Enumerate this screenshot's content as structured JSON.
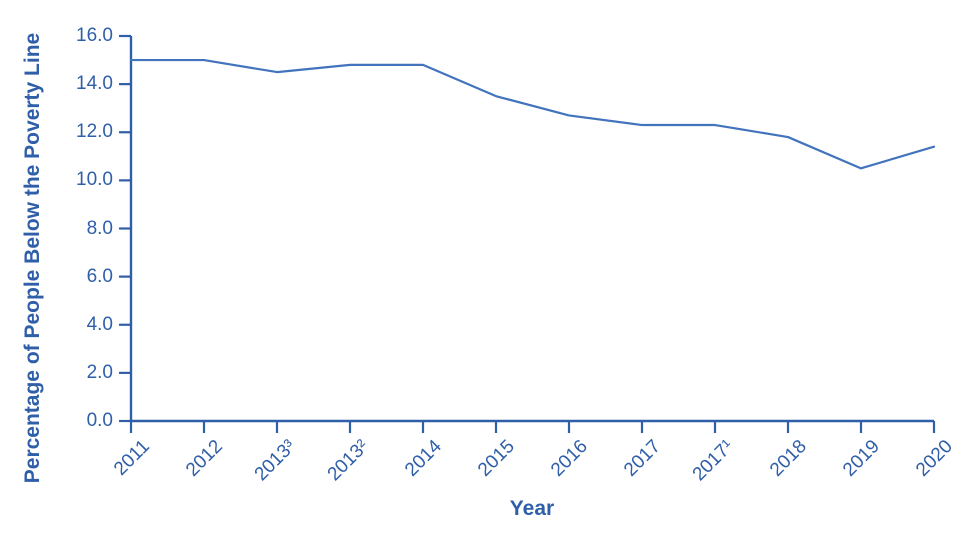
{
  "chart_data": {
    "type": "line",
    "title": "",
    "xlabel": "Year",
    "ylabel": "Percentage of People Below the Poverty Line",
    "categories": [
      "2011",
      "2012",
      "2013³",
      "2013²",
      "2014",
      "2015",
      "2016",
      "2017",
      "2017¹",
      "2018",
      "2019",
      "2020"
    ],
    "values": [
      15.0,
      15.0,
      14.5,
      14.8,
      14.8,
      13.5,
      12.7,
      12.3,
      12.3,
      11.8,
      10.5,
      11.4
    ],
    "ylim": [
      0,
      16
    ],
    "ytick_labels": [
      "0.0",
      "2.0",
      "4.0",
      "6.0",
      "8.0",
      "10.0",
      "12.0",
      "14.0",
      "16.0"
    ],
    "grid": false,
    "legend_position": "none",
    "colors": {
      "axis": "#2f5fa8",
      "line": "#4273bd",
      "text": "#2f5fa8"
    }
  }
}
